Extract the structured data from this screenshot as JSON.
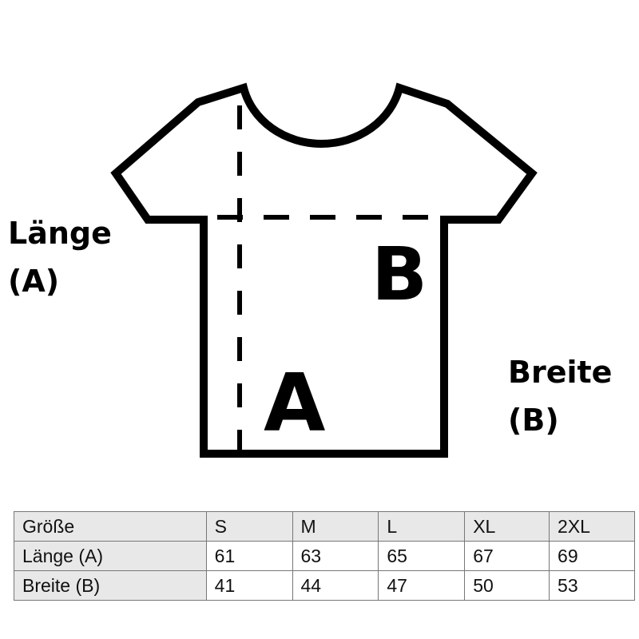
{
  "diagram": {
    "label_a_letter": "A",
    "label_b_letter": "B",
    "length_label": "Länge",
    "length_code": "(A)",
    "width_label": "Breite",
    "width_code": "(B)"
  },
  "table": {
    "header": [
      "Größe",
      "S",
      "M",
      "L",
      "XL",
      "2XL"
    ],
    "rows": [
      [
        "Länge (A)",
        "61",
        "63",
        "65",
        "67",
        "69"
      ],
      [
        "Breite (B)",
        "41",
        "44",
        "47",
        "50",
        "53"
      ]
    ]
  }
}
